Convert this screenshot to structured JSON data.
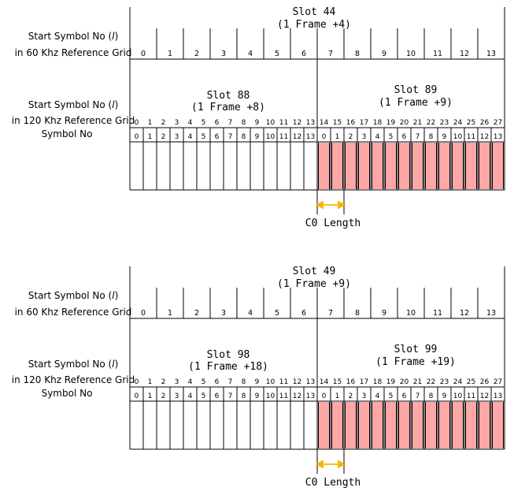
{
  "colors": {
    "line": "#000000",
    "highlight_fill": "#ffa6a6",
    "arrow": "#f5b800"
  },
  "row_labels": {
    "start_symbol": "Start Symbol No (",
    "l_symbol": "l",
    "close_paren": ")",
    "grid_60": "in 60 Khz Reference Grid",
    "grid_120": "in 120 Khz Reference Grid",
    "symbol_no": "Symbol No"
  },
  "c0_label": "C0 Length",
  "symbols_60": [
    "0",
    "1",
    "2",
    "3",
    "4",
    "5",
    "6",
    "7",
    "8",
    "9",
    "10",
    "11",
    "12",
    "13"
  ],
  "symbols_120": [
    "0",
    "1",
    "2",
    "3",
    "4",
    "5",
    "6",
    "7",
    "8",
    "9",
    "10",
    "11",
    "12",
    "13",
    "14",
    "15",
    "16",
    "17",
    "18",
    "19",
    "20",
    "21",
    "22",
    "23",
    "24",
    "25",
    "26",
    "27"
  ],
  "symbol_no": [
    "0",
    "1",
    "2",
    "3",
    "4",
    "5",
    "6",
    "7",
    "8",
    "9",
    "10",
    "11",
    "12",
    "13",
    "0",
    "1",
    "2",
    "3",
    "4",
    "5",
    "6",
    "7",
    "8",
    "9",
    "10",
    "11",
    "12",
    "13"
  ],
  "highlight_from_index": 14,
  "diagrams": [
    {
      "slot60": {
        "name": "Slot 44",
        "frame": "(1 Frame +4)"
      },
      "slot120a": {
        "name": "Slot 88",
        "frame": "(1 Frame +8)"
      },
      "slot120b": {
        "name": "Slot 89",
        "frame": "(1 Frame +9)"
      }
    },
    {
      "slot60": {
        "name": "Slot 49",
        "frame": "(1 Frame +9)"
      },
      "slot120a": {
        "name": "Slot 98",
        "frame": "(1 Frame +18)"
      },
      "slot120b": {
        "name": "Slot 99",
        "frame": "(1 Frame +19)"
      }
    }
  ]
}
